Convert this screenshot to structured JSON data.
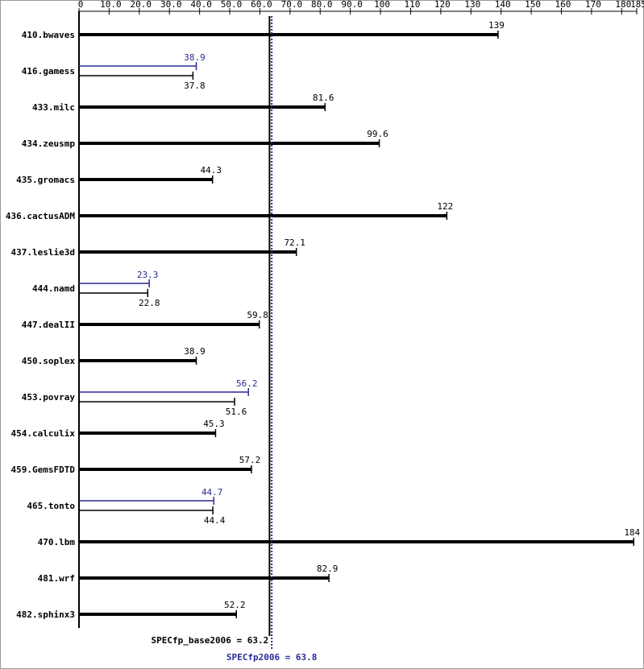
{
  "chart_data": {
    "type": "bar",
    "orientation": "horizontal",
    "categories": [
      "410.bwaves",
      "416.gamess",
      "433.milc",
      "434.zeusmp",
      "435.gromacs",
      "436.cactusADM",
      "437.leslie3d",
      "444.namd",
      "447.dealII",
      "450.soplex",
      "453.povray",
      "454.calculix",
      "459.GemsFDTD",
      "465.tonto",
      "470.lbm",
      "481.wrf",
      "482.sphinx3"
    ],
    "series": [
      {
        "color": "#000000",
        "values": [
          139,
          37.8,
          81.6,
          99.6,
          44.3,
          122,
          72.1,
          22.8,
          59.8,
          38.9,
          51.6,
          45.3,
          57.2,
          44.4,
          184,
          82.9,
          52.2
        ]
      },
      {
        "color": "#2a2a96",
        "values": [
          null,
          38.9,
          null,
          null,
          null,
          null,
          null,
          23.3,
          null,
          null,
          56.2,
          null,
          null,
          44.7,
          null,
          null,
          null
        ]
      }
    ],
    "xlim": [
      0,
      185
    ],
    "xticks": [
      0,
      {
        "value": 10,
        "label": "10.0"
      },
      {
        "value": 20,
        "label": "20.0"
      },
      {
        "value": 30,
        "label": "30.0"
      },
      {
        "value": 40,
        "label": "40.0"
      },
      {
        "value": 50,
        "label": "50.0"
      },
      {
        "value": 60,
        "label": "60.0"
      },
      {
        "value": 70,
        "label": "70.0"
      },
      {
        "value": 80,
        "label": "80.0"
      },
      {
        "value": 90,
        "label": "90.0"
      },
      100,
      110,
      120,
      130,
      140,
      150,
      160,
      170,
      180,
      185
    ],
    "reference_lines": [
      {
        "label": "SPECfp_base2006 = 63.2",
        "value": 63.2,
        "color": "#000000"
      },
      {
        "label": "SPECfp2006 = 63.8",
        "value": 63.8,
        "color": "#2a2a96"
      }
    ]
  }
}
